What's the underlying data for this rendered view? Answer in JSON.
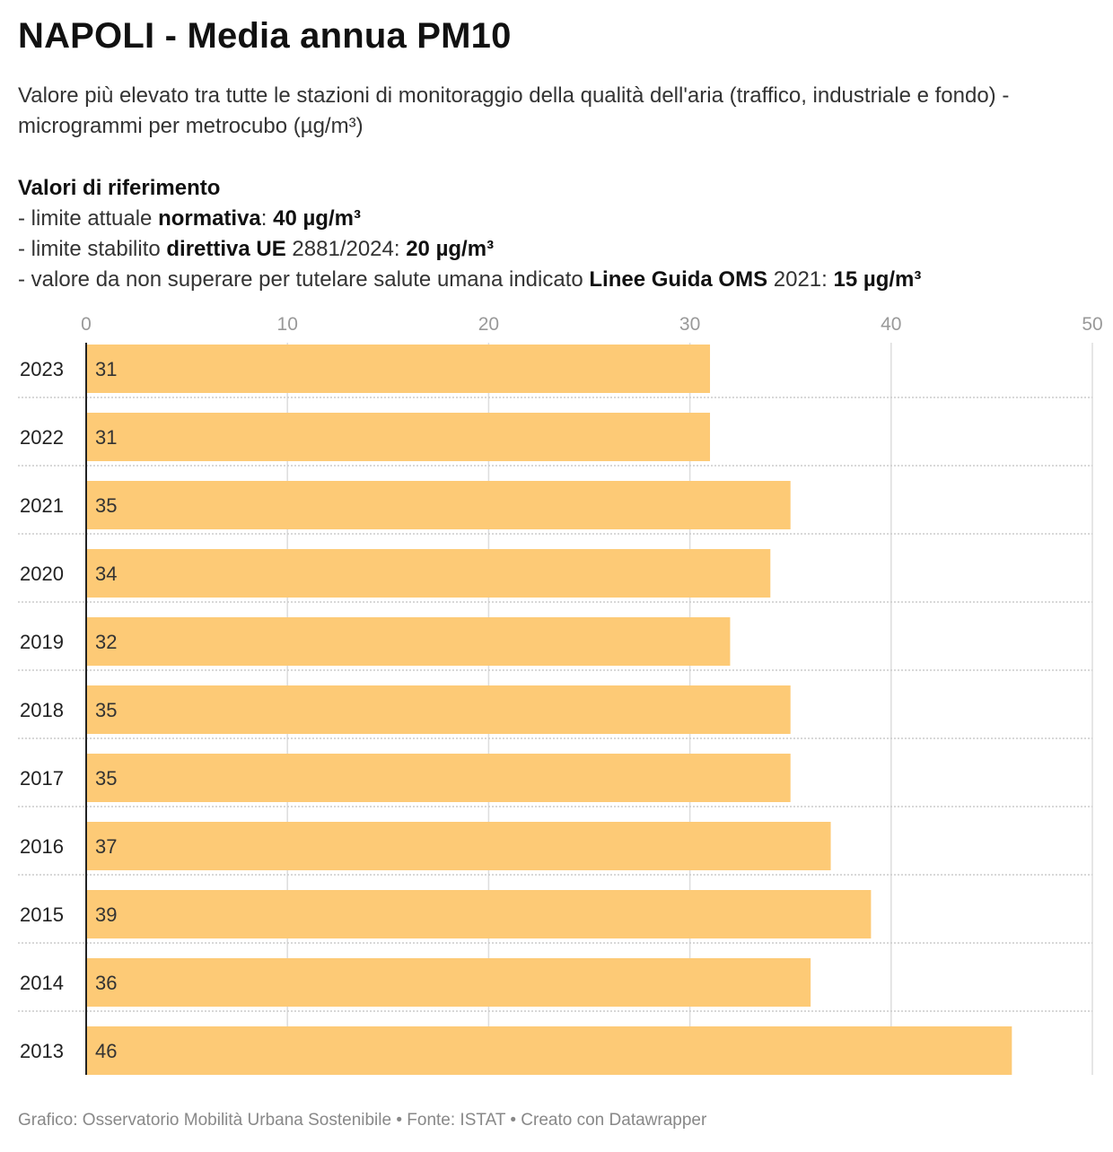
{
  "header": {
    "title": "NAPOLI - Media annua PM10",
    "subtitle": "Valore più elevato tra tutte le stazioni di monitoraggio della qualità dell'aria (traffico, industriale e fondo) - microgrammi per metrocubo (µg/m³)"
  },
  "references": {
    "heading": "Valori di riferimento",
    "line1": {
      "prefix": "- limite attuale ",
      "bold": "normativa",
      "mid": ": ",
      "value": "40 µg/m³"
    },
    "line2": {
      "prefix": "- limite stabilito ",
      "bold": "direttiva UE",
      "mid": " 2881/2024: ",
      "value": "20 µg/m³"
    },
    "line3": {
      "prefix": "- valore da non superare per tutelare salute umana indicato ",
      "bold": "Linee Guida OMS",
      "mid": " 2021: ",
      "value": "15 µg/m³"
    }
  },
  "footer": {
    "credit": "Grafico: Osservatorio Mobilità Urbana Sostenibile • Fonte: ISTAT • Creato con Datawrapper"
  },
  "colors": {
    "bar": "#fdca76",
    "grid": "#dddddd",
    "axis": "#222222"
  },
  "chart_data": {
    "type": "bar",
    "orientation": "horizontal",
    "title": "NAPOLI - Media annua PM10",
    "categories": [
      "2023",
      "2022",
      "2021",
      "2020",
      "2019",
      "2018",
      "2017",
      "2016",
      "2015",
      "2014",
      "2013"
    ],
    "values": [
      31,
      31,
      35,
      34,
      32,
      35,
      35,
      37,
      39,
      36,
      46
    ],
    "xlim": [
      0,
      50
    ],
    "ticks": [
      0,
      10,
      20,
      30,
      40,
      50
    ],
    "tick_position": "top",
    "grid": true,
    "data_labels": true
  }
}
